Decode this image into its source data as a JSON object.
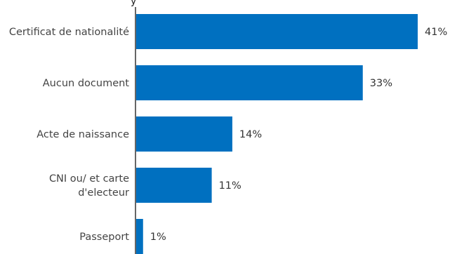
{
  "chart_data": {
    "type": "bar",
    "orientation": "horizontal",
    "categories": [
      "Certificat de nationalité",
      "Aucun document",
      "Acte de naissance",
      "CNI ou/ et carte d'electeur",
      "Passeport"
    ],
    "category_lines": [
      [
        "Certificat de nationalité"
      ],
      [
        "Aucun document"
      ],
      [
        "Acte de naissance"
      ],
      [
        "CNI ou/ et carte",
        "d'electeur"
      ],
      [
        "Passeport"
      ]
    ],
    "values": [
      41,
      33,
      14,
      11,
      1
    ],
    "value_labels": [
      "41%",
      "33%",
      "14%",
      "11%",
      "1%"
    ],
    "xlim": [
      0,
      41
    ],
    "unit": "%",
    "bar_color": "#0070c0",
    "axis_color": "#000000",
    "grid": false,
    "legend": "none"
  }
}
